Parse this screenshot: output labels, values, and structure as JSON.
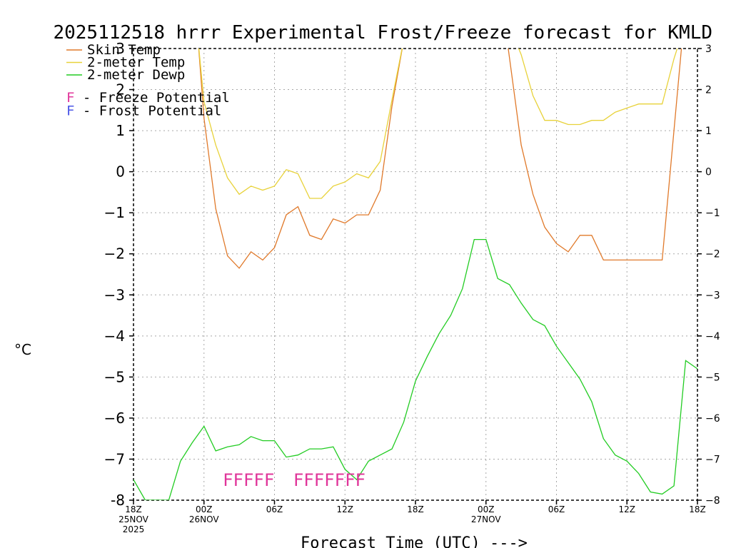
{
  "colors": {
    "skin": "#e0792a",
    "t2m": "#e8d23a",
    "dew": "#22cc22",
    "freeze": "#e0359a",
    "frost": "#4a55e6",
    "axis": "#000000",
    "grid": "#a8a8a8"
  },
  "chart_data": {
    "type": "line",
    "title": "2025112518 hrrr Experimental Frost/Freeze forecast for KMLD",
    "xlabel": "Forecast Time (UTC) --->",
    "ylabel": "°C",
    "ylim": [
      -8,
      3
    ],
    "xlim": [
      0,
      48
    ],
    "yticks_left": [
      "-8",
      "−7",
      "−6",
      "−5",
      "−4",
      "−3",
      "−2",
      "−1",
      "0",
      "1",
      "2",
      "3"
    ],
    "yticks_right": [
      "−8",
      "−7",
      "−6",
      "−5",
      "−4",
      "−3",
      "−2",
      "−1",
      "0",
      "1",
      "2",
      "3"
    ],
    "xticks": [
      {
        "h": 0,
        "lines": [
          "18Z",
          "25NOV",
          "2025"
        ]
      },
      {
        "h": 6,
        "lines": [
          "00Z",
          "26NOV"
        ]
      },
      {
        "h": 12,
        "lines": [
          "06Z"
        ]
      },
      {
        "h": 18,
        "lines": [
          "12Z"
        ]
      },
      {
        "h": 24,
        "lines": [
          "18Z"
        ]
      },
      {
        "h": 30,
        "lines": [
          "00Z",
          "27NOV"
        ]
      },
      {
        "h": 36,
        "lines": [
          "06Z"
        ]
      },
      {
        "h": 42,
        "lines": [
          "12Z"
        ]
      },
      {
        "h": 48,
        "lines": [
          "18Z"
        ]
      }
    ],
    "grid": true,
    "series": [
      {
        "name": "Skin Temp",
        "color_key": "skin",
        "points": [
          [
            5.5,
            3.2
          ],
          [
            6,
            1.3
          ],
          [
            7,
            -0.9
          ],
          [
            8,
            -2.05
          ],
          [
            9,
            -2.35
          ],
          [
            10,
            -1.95
          ],
          [
            11,
            -2.15
          ],
          [
            12,
            -1.85
          ],
          [
            13,
            -1.05
          ],
          [
            14,
            -0.85
          ],
          [
            15,
            -1.55
          ],
          [
            16,
            -1.65
          ],
          [
            17,
            -1.15
          ],
          [
            18,
            -1.25
          ],
          [
            19,
            -1.05
          ],
          [
            20,
            -1.05
          ],
          [
            21,
            -0.45
          ],
          [
            22,
            1.6
          ],
          [
            23,
            3.2
          ],
          [
            31.8,
            3.2
          ],
          [
            33,
            0.65
          ],
          [
            34,
            -0.55
          ],
          [
            35,
            -1.35
          ],
          [
            36,
            -1.75
          ],
          [
            37,
            -1.95
          ],
          [
            38,
            -1.55
          ],
          [
            39,
            -1.55
          ],
          [
            40,
            -2.15
          ],
          [
            41,
            -2.15
          ],
          [
            42,
            -2.15
          ],
          [
            43,
            -2.15
          ],
          [
            44,
            -2.15
          ],
          [
            45,
            -2.15
          ],
          [
            46,
            1.0
          ],
          [
            46.7,
            3.2
          ]
        ]
      },
      {
        "name": "2-meter Temp",
        "color_key": "t2m",
        "points": [
          [
            5.5,
            3.2
          ],
          [
            6,
            1.7
          ],
          [
            7,
            0.65
          ],
          [
            8,
            -0.15
          ],
          [
            9,
            -0.55
          ],
          [
            10,
            -0.35
          ],
          [
            11,
            -0.45
          ],
          [
            12,
            -0.35
          ],
          [
            13,
            0.05
          ],
          [
            14,
            -0.05
          ],
          [
            15,
            -0.65
          ],
          [
            16,
            -0.65
          ],
          [
            17,
            -0.35
          ],
          [
            18,
            -0.25
          ],
          [
            19,
            -0.05
          ],
          [
            20,
            -0.15
          ],
          [
            21,
            0.25
          ],
          [
            22,
            1.75
          ],
          [
            23,
            3.2
          ],
          [
            32.5,
            3.2
          ],
          [
            33,
            2.85
          ],
          [
            34,
            1.85
          ],
          [
            35,
            1.25
          ],
          [
            36,
            1.25
          ],
          [
            37,
            1.15
          ],
          [
            38,
            1.15
          ],
          [
            39,
            1.25
          ],
          [
            40,
            1.25
          ],
          [
            41,
            1.45
          ],
          [
            42,
            1.55
          ],
          [
            43,
            1.65
          ],
          [
            44,
            1.65
          ],
          [
            45,
            1.65
          ],
          [
            46,
            2.75
          ],
          [
            46.5,
            3.2
          ]
        ]
      },
      {
        "name": "2-meter Dewp",
        "color_key": "dew",
        "points": [
          [
            0,
            -7.5
          ],
          [
            1,
            -8.0
          ],
          [
            3,
            -8.0
          ],
          [
            4,
            -7.05
          ],
          [
            5,
            -6.6
          ],
          [
            6,
            -6.2
          ],
          [
            7,
            -6.8
          ],
          [
            8,
            -6.7
          ],
          [
            9,
            -6.65
          ],
          [
            10,
            -6.45
          ],
          [
            11,
            -6.55
          ],
          [
            12,
            -6.55
          ],
          [
            13,
            -6.95
          ],
          [
            14,
            -6.9
          ],
          [
            15,
            -6.75
          ],
          [
            16,
            -6.75
          ],
          [
            17,
            -6.7
          ],
          [
            18,
            -7.25
          ],
          [
            19,
            -7.5
          ],
          [
            20,
            -7.05
          ],
          [
            21,
            -6.9
          ],
          [
            22,
            -6.75
          ],
          [
            23,
            -6.1
          ],
          [
            24,
            -5.1
          ],
          [
            25,
            -4.5
          ],
          [
            26,
            -3.95
          ],
          [
            27,
            -3.5
          ],
          [
            28,
            -2.85
          ],
          [
            29,
            -1.65
          ],
          [
            30,
            -1.65
          ],
          [
            31,
            -2.6
          ],
          [
            32,
            -2.75
          ],
          [
            33,
            -3.2
          ],
          [
            34,
            -3.6
          ],
          [
            35,
            -3.75
          ],
          [
            36,
            -4.25
          ],
          [
            37,
            -4.65
          ],
          [
            38,
            -5.05
          ],
          [
            39,
            -5.6
          ],
          [
            40,
            -6.5
          ],
          [
            41,
            -6.9
          ],
          [
            42,
            -7.05
          ],
          [
            43,
            -7.35
          ],
          [
            44,
            -7.8
          ],
          [
            45,
            -7.85
          ],
          [
            46,
            -7.65
          ],
          [
            47,
            -4.6
          ],
          [
            48,
            -4.8
          ]
        ]
      }
    ],
    "legend": [
      {
        "label": "Skin Temp",
        "color_key": "skin"
      },
      {
        "label": "2-meter Temp",
        "color_key": "t2m"
      },
      {
        "label": "2-meter Dewp",
        "color_key": "dew"
      }
    ],
    "potential_legend": [
      {
        "letter": "F",
        "text": " - Freeze Potential",
        "color_key": "freeze"
      },
      {
        "letter": "F",
        "text": " - Frost Potential",
        "color_key": "frost"
      }
    ],
    "freeze_marks": [
      {
        "h_start": 7.6,
        "text": "FFFFF"
      },
      {
        "h_start": 13.6,
        "text": "FFFFFFF"
      }
    ]
  }
}
